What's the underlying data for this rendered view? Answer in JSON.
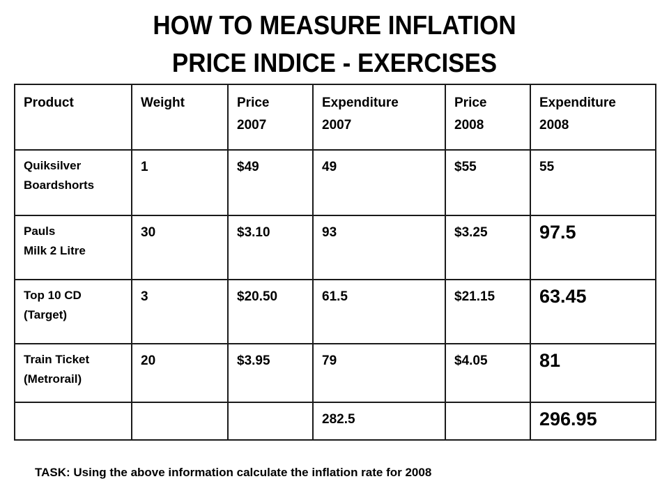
{
  "title": {
    "line1": "HOW TO MEASURE INFLATION",
    "line2": "PRICE INDICE - EXERCISES"
  },
  "table": {
    "headers": [
      [
        "Product"
      ],
      [
        "Weight"
      ],
      [
        "Price",
        "2007"
      ],
      [
        "Expenditure",
        "2007"
      ],
      [
        "Price",
        "2008"
      ],
      [
        "Expenditure",
        "2008"
      ]
    ],
    "rows": [
      {
        "product": [
          "Quiksilver",
          "Boardshorts"
        ],
        "weight": "1",
        "price_2007": "$49",
        "expenditure_2007": "49",
        "price_2008": "$55",
        "expenditure_2008": "55"
      },
      {
        "product": [
          "Pauls",
          "Milk 2 Litre"
        ],
        "weight": "30",
        "price_2007": "$3.10",
        "expenditure_2007": "93",
        "price_2008": "$3.25",
        "expenditure_2008": "97.5"
      },
      {
        "product": [
          "Top 10 CD",
          "(Target)"
        ],
        "weight": "3",
        "price_2007": "$20.50",
        "expenditure_2007": "61.5",
        "price_2008": "$21.15",
        "expenditure_2008": "63.45"
      },
      {
        "product": [
          "Train Ticket",
          "(Metrorail)"
        ],
        "weight": "20",
        "price_2007": "$3.95",
        "expenditure_2007": "79",
        "price_2008": "$4.05",
        "expenditure_2008": "81"
      }
    ],
    "totals": {
      "expenditure_2007": "282.5",
      "expenditure_2008": "296.95"
    }
  },
  "task": "TASK: Using the above information calculate the inflation rate for 2008"
}
